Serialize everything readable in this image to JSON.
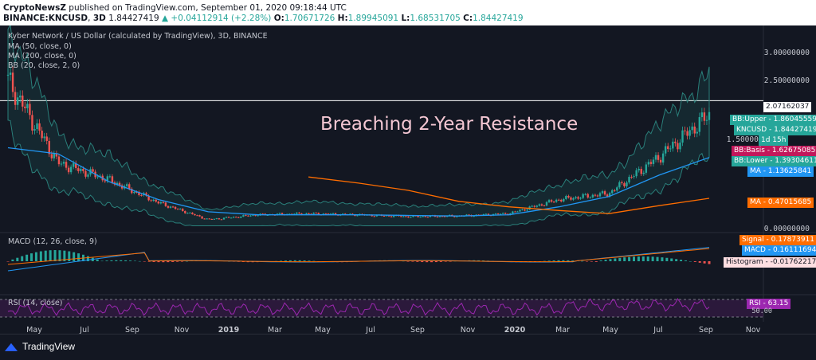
{
  "header": {
    "publisher": "CryptoNewsZ",
    "published_text": "published on TradingView.com, September 01, 2020 09:18:44 UTC",
    "symbol": "BINANCE:KNCUSD",
    "interval": "3D",
    "last": "1.84427419",
    "change": "+0.04112914 (+2.28%)",
    "o_label": "O:",
    "o": "1.70671726",
    "h_label": "H:",
    "h": "1.89945091",
    "l_label": "L:",
    "l": "1.68531705",
    "c_label": "C:",
    "c": "1.84427419"
  },
  "chart_title": "Kyber Network / US Dollar (calculated by TradingView), 3D, BINANCE",
  "indicators": {
    "ma50": "MA (50, close, 0)",
    "ma200": "MA (200, close, 0)",
    "bb": "BB (20, close, 2, 0)",
    "macd": "MACD (12, 26, close, 9)",
    "rsi": "RSI (14, close)"
  },
  "annotation": "Breaching 2-Year Resistance",
  "price_axis": [
    "3.00000000",
    "2.50000000",
    "1.50000000",
    "0.00000000"
  ],
  "tags": {
    "resistance": "2.07162037",
    "bb_upper": "BB:Upper - 1.86045559",
    "kncusd": "KNCUSD - 1.84427419",
    "countdown": "1d 15h",
    "bb_basis": "BB:Basis - 1.62675085",
    "bb_lower": "BB:Lower - 1.39304611",
    "ma_50": "MA - 1.13625841",
    "ma_200": "MA - 0.47015685",
    "signal": "Signal - 0.17873911",
    "macd": "MACD - 0.16111694",
    "histogram": "Histogram - -0.01762217",
    "rsi": "RSI - 63.15",
    "rsi_mid": "50.00"
  },
  "x_axis": [
    "May",
    "Jul",
    "Sep",
    "Nov",
    "2019",
    "Mar",
    "May",
    "Jul",
    "Sep",
    "Nov",
    "2020",
    "Mar",
    "May",
    "Jul",
    "Sep",
    "Nov"
  ],
  "footer": {
    "brand": "TradingView"
  },
  "colors": {
    "background": "#131722",
    "up": "#26a69a",
    "down": "#ef5350",
    "ma50": "#2196f3",
    "ma200": "#ff6d00",
    "bb_basis": "#c2185b",
    "bb_band": "#2a7f7a",
    "resistance": "#ffffff",
    "rsi": "#9c27b0",
    "macd": "#2196f3",
    "signal": "#ff6d00"
  },
  "chart_data": {
    "type": "line",
    "title": "Kyber Network / US Dollar (calculated by TradingView), 3D, BINANCE",
    "x": [
      "May",
      "Jul",
      "Sep",
      "Nov",
      "2019",
      "Mar",
      "May",
      "Jul",
      "Sep",
      "Nov",
      "2020",
      "Mar",
      "May",
      "Jul",
      "Sep"
    ],
    "ylim": [
      0,
      3.2
    ],
    "series": [
      {
        "name": "KNCUSD",
        "values": [
          2.4,
          1.05,
          0.78,
          0.4,
          0.12,
          0.2,
          0.22,
          0.2,
          0.17,
          0.18,
          0.22,
          0.45,
          0.55,
          1.15,
          1.84
        ]
      },
      {
        "name": "MA (50, close, 0)",
        "values": [
          1.3,
          1.2,
          0.75,
          0.45,
          0.25,
          0.2,
          0.2,
          0.2,
          0.19,
          0.18,
          0.2,
          0.33,
          0.5,
          0.85,
          1.14
        ]
      },
      {
        "name": "MA (200, close, 0)",
        "values": [
          null,
          null,
          null,
          null,
          null,
          null,
          0.82,
          0.72,
          0.6,
          0.42,
          0.33,
          0.27,
          0.22,
          0.35,
          0.47
        ]
      }
    ],
    "resistance": 2.07162037,
    "grid": false,
    "legend": "top-left"
  }
}
